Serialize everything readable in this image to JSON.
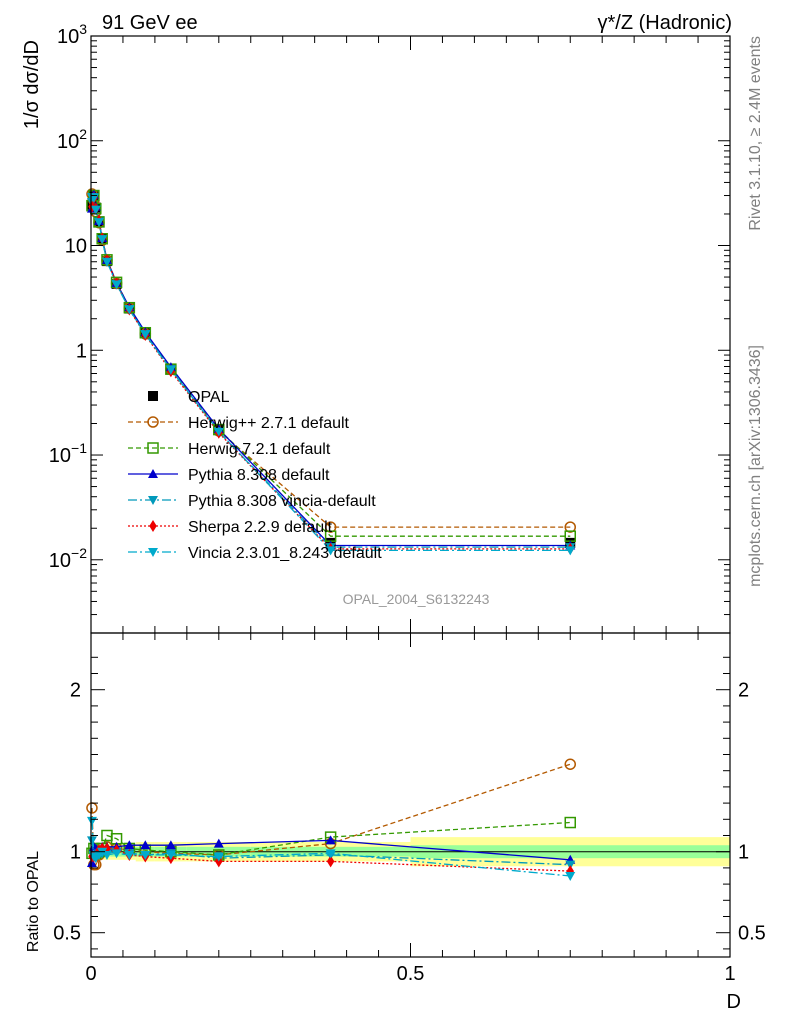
{
  "header": {
    "left": "91 GeV ee",
    "right": "γ*/Z (Hadronic)"
  },
  "side_labels": {
    "rivet": "Rivet 3.1.10, ≥ 2.4M events",
    "mcplots": "mcplots.cern.ch [arXiv:1306.3436]"
  },
  "watermark": "OPAL_2004_S6132243",
  "colors": {
    "data": "#000000",
    "herwigpp": "#b35900",
    "herwig72": "#339900",
    "pythia": "#0000cc",
    "pythia_vincia": "#0099bb",
    "sherpa": "#ee0000",
    "vincia": "#00aacc",
    "band_inner": "#99ff99",
    "band_outer": "#ffff99"
  },
  "chart_data": [
    {
      "type": "line",
      "ylabel": "1/σ dσ/dD",
      "xlabel": "",
      "xlim": [
        0,
        1
      ],
      "ylim": [
        0.002,
        1000
      ],
      "yscale": "log",
      "ytick_labels": [
        "10^3",
        "10^2",
        "10",
        "1",
        "10^-1",
        "10^-2"
      ],
      "x": [
        0.0015,
        0.0045,
        0.0075,
        0.0125,
        0.0175,
        0.025,
        0.04,
        0.06,
        0.085,
        0.125,
        0.2,
        0.375,
        0.75
      ],
      "series": [
        {
          "name": "OPAL",
          "marker": "square-filled",
          "values": [
            24.5,
            29.5,
            23.0,
            17.0,
            11.5,
            7.1,
            4.3,
            2.5,
            1.45,
            0.67,
            0.175,
            0.0145,
            0.0145
          ]
        },
        {
          "name": "Herwig++ 2.7.1 default",
          "marker": "circle-open",
          "values": [
            31.0,
            27.0,
            21.0,
            16.5,
            11.2,
            7.2,
            4.35,
            2.52,
            1.43,
            0.66,
            0.17,
            0.0205,
            0.0205
          ]
        },
        {
          "name": "Herwig 7.2.1 default",
          "marker": "square-open",
          "values": [
            24.0,
            30.0,
            22.5,
            16.8,
            11.6,
            7.3,
            4.45,
            2.55,
            1.47,
            0.66,
            0.175,
            0.0168,
            0.0168
          ]
        },
        {
          "name": "Pythia 8.308 default",
          "marker": "triangle-up",
          "values": [
            22.5,
            30.5,
            23.5,
            17.2,
            11.8,
            7.3,
            4.4,
            2.58,
            1.49,
            0.69,
            0.177,
            0.0137,
            0.0137
          ]
        },
        {
          "name": "Pythia 8.308 vincia-default",
          "marker": "triangle-down",
          "values": [
            26.0,
            29.0,
            22.0,
            16.9,
            11.4,
            7.0,
            4.3,
            2.48,
            1.43,
            0.66,
            0.165,
            0.0132,
            0.0132
          ]
        },
        {
          "name": "Sherpa 2.2.9 default",
          "marker": "diamond",
          "values": [
            23.5,
            28.5,
            22.5,
            17.3,
            11.7,
            7.25,
            4.35,
            2.45,
            1.4,
            0.63,
            0.163,
            0.0127,
            0.0127
          ]
        },
        {
          "name": "Vincia 2.3.01_8.243 default",
          "marker": "triangle-down",
          "values": [
            29.0,
            28.5,
            22.0,
            16.7,
            11.5,
            7.0,
            4.25,
            2.45,
            1.42,
            0.65,
            0.168,
            0.0123,
            0.0123
          ]
        }
      ]
    },
    {
      "type": "line",
      "ylabel": "Ratio to OPAL",
      "xlabel": "D",
      "xlim": [
        0,
        1
      ],
      "ylim": [
        0.35,
        2.35
      ],
      "xtick_labels": [
        "0",
        "0.5",
        "1"
      ],
      "ytick_labels": [
        "0.5",
        "1",
        "2"
      ],
      "band_edges": [
        0,
        0.003,
        0.006,
        0.01,
        0.015,
        0.02,
        0.03,
        0.05,
        0.07,
        0.1,
        0.15,
        0.25,
        0.5,
        1.0
      ],
      "band_inner": [
        0.03,
        0.03,
        0.03,
        0.03,
        0.03,
        0.03,
        0.03,
        0.03,
        0.03,
        0.03,
        0.03,
        0.03,
        0.04
      ],
      "band_outer": [
        0.06,
        0.06,
        0.05,
        0.05,
        0.05,
        0.05,
        0.05,
        0.05,
        0.06,
        0.06,
        0.06,
        0.06,
        0.09
      ],
      "x": [
        0.0015,
        0.0045,
        0.0075,
        0.0125,
        0.0175,
        0.025,
        0.04,
        0.06,
        0.085,
        0.125,
        0.2,
        0.375,
        0.75
      ],
      "series": [
        {
          "name": "Herwig++ 2.7.1 default",
          "values": [
            1.27,
            0.92,
            0.92,
            0.98,
            1.0,
            1.03,
            1.02,
            1.01,
            1.0,
            0.99,
            0.98,
            1.05,
            1.54
          ]
        },
        {
          "name": "Herwig 7.2.1 default",
          "values": [
            0.99,
            1.02,
            0.99,
            1.0,
            1.02,
            1.1,
            1.08,
            1.02,
            1.01,
            1.0,
            0.98,
            1.09,
            1.18
          ]
        },
        {
          "name": "Pythia 8.308 default",
          "values": [
            0.93,
            1.03,
            1.02,
            1.01,
            1.03,
            1.03,
            1.03,
            1.04,
            1.04,
            1.04,
            1.05,
            1.07,
            0.95
          ]
        },
        {
          "name": "Pythia 8.308 vincia-default",
          "values": [
            1.07,
            0.98,
            0.97,
            0.99,
            0.99,
            0.99,
            1.0,
            0.99,
            0.98,
            0.99,
            0.96,
            0.98,
            0.92
          ]
        },
        {
          "name": "Sherpa 2.2.9 default",
          "values": [
            0.97,
            0.97,
            0.97,
            1.01,
            1.02,
            1.02,
            1.01,
            0.98,
            0.97,
            0.96,
            0.94,
            0.94,
            0.88
          ]
        },
        {
          "name": "Vincia 2.3.01_8.243 default",
          "values": [
            1.19,
            0.97,
            0.96,
            0.98,
            1.0,
            0.98,
            0.99,
            0.98,
            0.98,
            0.98,
            0.97,
            0.99,
            0.85
          ]
        }
      ]
    }
  ]
}
